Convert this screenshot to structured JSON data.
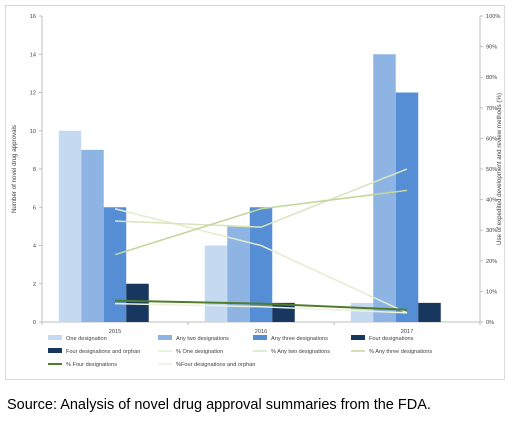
{
  "chart_data": {
    "type": "bar",
    "categories": [
      "2015",
      "2016",
      "2017"
    ],
    "ylabel": "Number of novel drug approvals",
    "ylim": [
      0,
      16
    ],
    "yticks": [
      "0",
      "2",
      "4",
      "6",
      "8",
      "10",
      "12",
      "14",
      "16"
    ],
    "y2label": "Use of expedited development and review methods (%)",
    "y2lim": [
      0,
      100
    ],
    "y2ticks": [
      "0%",
      "10%",
      "20%",
      "30%",
      "40%",
      "50%",
      "60%",
      "70%",
      "80%",
      "90%",
      "100%"
    ],
    "grid": false,
    "legend_position": "bottom",
    "series": [
      {
        "name": "One designation",
        "kind": "bar",
        "axis": "left",
        "color": "#c5d9f1",
        "values": [
          10,
          4,
          1
        ]
      },
      {
        "name": "Any two designations",
        "kind": "bar",
        "axis": "left",
        "color": "#8eb4e3",
        "values": [
          9,
          5,
          14
        ]
      },
      {
        "name": "Any three designations",
        "kind": "bar",
        "axis": "left",
        "color": "#558ed5",
        "values": [
          6,
          6,
          12
        ]
      },
      {
        "name": "Four designations",
        "kind": "bar",
        "axis": "left",
        "color": "#17375e",
        "values": [
          2,
          1,
          1
        ]
      },
      {
        "name": "Four designations and orphan",
        "kind": "bar",
        "axis": "left",
        "color": "#17375e",
        "values": [
          0,
          0,
          0
        ]
      },
      {
        "name": "% One designation",
        "kind": "line",
        "axis": "right",
        "color": "#e4ecd0",
        "width": 1.5,
        "values": [
          37,
          25,
          3
        ]
      },
      {
        "name": "% Any two designations",
        "kind": "line",
        "axis": "right",
        "color": "#d7e4bd",
        "width": 1.5,
        "values": [
          33,
          31,
          50
        ]
      },
      {
        "name": "% Any three designations",
        "kind": "line",
        "axis": "right",
        "color": "#c3d69b",
        "width": 1.5,
        "values": [
          22,
          37,
          43
        ]
      },
      {
        "name": "% Four designations",
        "kind": "line",
        "axis": "right",
        "color": "#4f7d2a",
        "width": 2,
        "values": [
          7,
          6,
          4
        ]
      },
      {
        "name": "%Four designations and orphan",
        "kind": "line",
        "axis": "right",
        "color": "#ebf1de",
        "width": 1.5,
        "values": [
          6,
          5,
          3
        ]
      }
    ]
  },
  "source_text": "Source: Analysis of novel drug approval summaries from the FDA."
}
